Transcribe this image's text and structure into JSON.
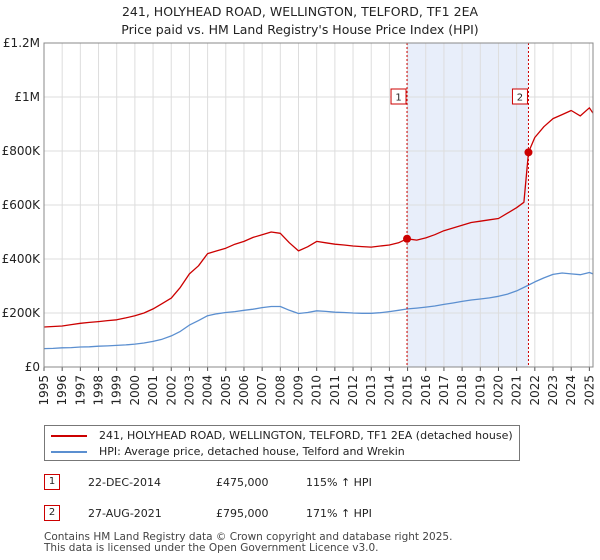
{
  "title_line1": "241, HOLYHEAD ROAD, WELLINGTON, TELFORD, TF1 2EA",
  "title_line2": "Price paid vs. HM Land Registry's House Price Index (HPI)",
  "chart_data": {
    "type": "line",
    "title": "241, HOLYHEAD ROAD, WELLINGTON, TELFORD, TF1 2EA — Price paid vs. HM Land Registry's House Price Index (HPI)",
    "xlabel": "",
    "ylabel": "",
    "xlim": [
      1995,
      2025.2
    ],
    "ylim": [
      0,
      1200000
    ],
    "x_ticks": [
      1995,
      1996,
      1997,
      1998,
      1999,
      2000,
      2001,
      2002,
      2003,
      2004,
      2005,
      2006,
      2007,
      2008,
      2009,
      2010,
      2011,
      2012,
      2013,
      2014,
      2015,
      2016,
      2017,
      2018,
      2019,
      2020,
      2021,
      2022,
      2023,
      2024,
      2025
    ],
    "y_ticks": [
      {
        "value": 0,
        "label": "£0"
      },
      {
        "value": 200000,
        "label": "£200K"
      },
      {
        "value": 400000,
        "label": "£400K"
      },
      {
        "value": 600000,
        "label": "£600K"
      },
      {
        "value": 800000,
        "label": "£800K"
      },
      {
        "value": 1000000,
        "label": "£1M"
      },
      {
        "value": 1200000,
        "label": "£1.2M"
      }
    ],
    "grid": true,
    "highlight_span": [
      2014.97,
      2021.65
    ],
    "series": [
      {
        "name": "241, HOLYHEAD ROAD, WELLINGTON, TELFORD, TF1 2EA (detached house)",
        "color": "#cc0000",
        "x": [
          1995,
          1995.5,
          1996,
          1996.5,
          1997,
          1997.5,
          1998,
          1998.5,
          1999,
          1999.5,
          2000,
          2000.5,
          2001,
          2001.5,
          2002,
          2002.5,
          2003,
          2003.5,
          2004,
          2004.5,
          2005,
          2005.5,
          2006,
          2006.5,
          2007,
          2007.5,
          2008,
          2008.5,
          2009,
          2009.5,
          2010,
          2010.5,
          2011,
          2011.5,
          2012,
          2012.5,
          2013,
          2013.5,
          2014,
          2014.5,
          2014.97,
          2015.5,
          2016,
          2016.5,
          2017,
          2017.5,
          2018,
          2018.5,
          2019,
          2019.5,
          2020,
          2020.5,
          2021,
          2021.4,
          2021.65,
          2022,
          2022.5,
          2023,
          2023.5,
          2024,
          2024.5,
          2025,
          2025.2
        ],
        "values": [
          148000,
          150000,
          152000,
          157000,
          162000,
          165000,
          168000,
          172000,
          175000,
          182000,
          190000,
          200000,
          215000,
          235000,
          255000,
          295000,
          345000,
          375000,
          420000,
          430000,
          440000,
          455000,
          465000,
          480000,
          490000,
          500000,
          495000,
          460000,
          430000,
          445000,
          465000,
          460000,
          455000,
          452000,
          448000,
          446000,
          444000,
          448000,
          452000,
          460000,
          475000,
          470000,
          478000,
          490000,
          505000,
          515000,
          525000,
          535000,
          540000,
          545000,
          550000,
          570000,
          590000,
          610000,
          795000,
          850000,
          890000,
          920000,
          935000,
          950000,
          930000,
          960000,
          940000
        ]
      },
      {
        "name": "HPI: Average price, detached house, Telford and Wrekin",
        "color": "#5b8fd0",
        "x": [
          1995,
          1995.5,
          1996,
          1996.5,
          1997,
          1997.5,
          1998,
          1998.5,
          1999,
          1999.5,
          2000,
          2000.5,
          2001,
          2001.5,
          2002,
          2002.5,
          2003,
          2003.5,
          2004,
          2004.5,
          2005,
          2005.5,
          2006,
          2006.5,
          2007,
          2007.5,
          2008,
          2008.5,
          2009,
          2009.5,
          2010,
          2010.5,
          2011,
          2011.5,
          2012,
          2012.5,
          2013,
          2013.5,
          2014,
          2014.5,
          2015,
          2015.5,
          2016,
          2016.5,
          2017,
          2017.5,
          2018,
          2018.5,
          2019,
          2019.5,
          2020,
          2020.5,
          2021,
          2021.5,
          2022,
          2022.5,
          2023,
          2023.5,
          2024,
          2024.5,
          2025,
          2025.2
        ],
        "values": [
          68000,
          69000,
          71000,
          72000,
          74000,
          75000,
          77000,
          78000,
          80000,
          82000,
          85000,
          89000,
          95000,
          103000,
          115000,
          132000,
          155000,
          172000,
          190000,
          197000,
          202000,
          205000,
          210000,
          214000,
          220000,
          224000,
          224000,
          210000,
          198000,
          202000,
          208000,
          206000,
          203000,
          202000,
          200000,
          199000,
          199000,
          201000,
          205000,
          210000,
          215000,
          218000,
          222000,
          226000,
          232000,
          237000,
          243000,
          248000,
          252000,
          256000,
          262000,
          270000,
          282000,
          298000,
          315000,
          330000,
          343000,
          348000,
          345000,
          342000,
          350000,
          345000
        ]
      }
    ],
    "sales": [
      {
        "label": "1",
        "x": 2014.97,
        "value": 475000
      },
      {
        "label": "2",
        "x": 2021.65,
        "value": 795000
      }
    ]
  },
  "legend": {
    "property_label": "241, HOLYHEAD ROAD, WELLINGTON, TELFORD, TF1 2EA (detached house)",
    "hpi_label": "HPI: Average price, detached house, Telford and Wrekin"
  },
  "sales_table": [
    {
      "marker": "1",
      "date": "22-DEC-2014",
      "price": "£475,000",
      "hpi": "115% ↑ HPI"
    },
    {
      "marker": "2",
      "date": "27-AUG-2021",
      "price": "£795,000",
      "hpi": "171% ↑ HPI"
    }
  ],
  "footer": {
    "line1": "Contains HM Land Registry data © Crown copyright and database right 2025.",
    "line2": "This data is licensed under the Open Government Licence v3.0."
  },
  "colors": {
    "property": "#cc0000",
    "hpi": "#5b8fd0",
    "highlight": "#e8eefa",
    "grid": "#dddddd"
  }
}
